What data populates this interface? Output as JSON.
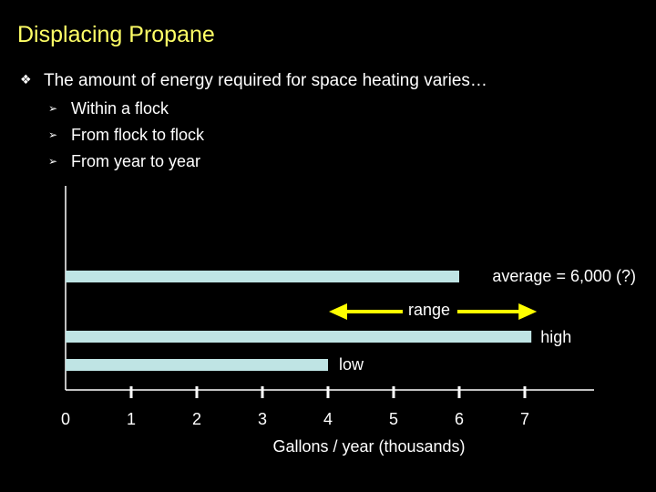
{
  "slide": {
    "title": "Displacing Propane",
    "bullet": {
      "marker": "❖",
      "text": "The amount of energy required for space heating varies…"
    },
    "sub_bullets": [
      {
        "marker": "➢",
        "text": "Within a flock"
      },
      {
        "marker": "➢",
        "text": "From flock to flock"
      },
      {
        "marker": "➢",
        "text": "From year to year"
      }
    ]
  },
  "colors": {
    "background": "#000000",
    "title": "#ffff66",
    "bar": "#bfe4e4",
    "arrow": "#ffff00",
    "text": "#ffffff"
  },
  "chart_data": {
    "type": "bar",
    "orientation": "horizontal",
    "xlabel": "Gallons / year (thousands)",
    "xlim": [
      0,
      8
    ],
    "xticks": [
      "0",
      "1",
      "2",
      "3",
      "4",
      "5",
      "6",
      "7"
    ],
    "bars": [
      {
        "label": "average = 6,000 (?)",
        "value": 6.0
      },
      {
        "label": "high",
        "value": 7.1
      },
      {
        "label": "low",
        "value": 4.0
      }
    ],
    "range_arrow": {
      "label": "range",
      "from": 4.0,
      "to": 7.1
    }
  }
}
